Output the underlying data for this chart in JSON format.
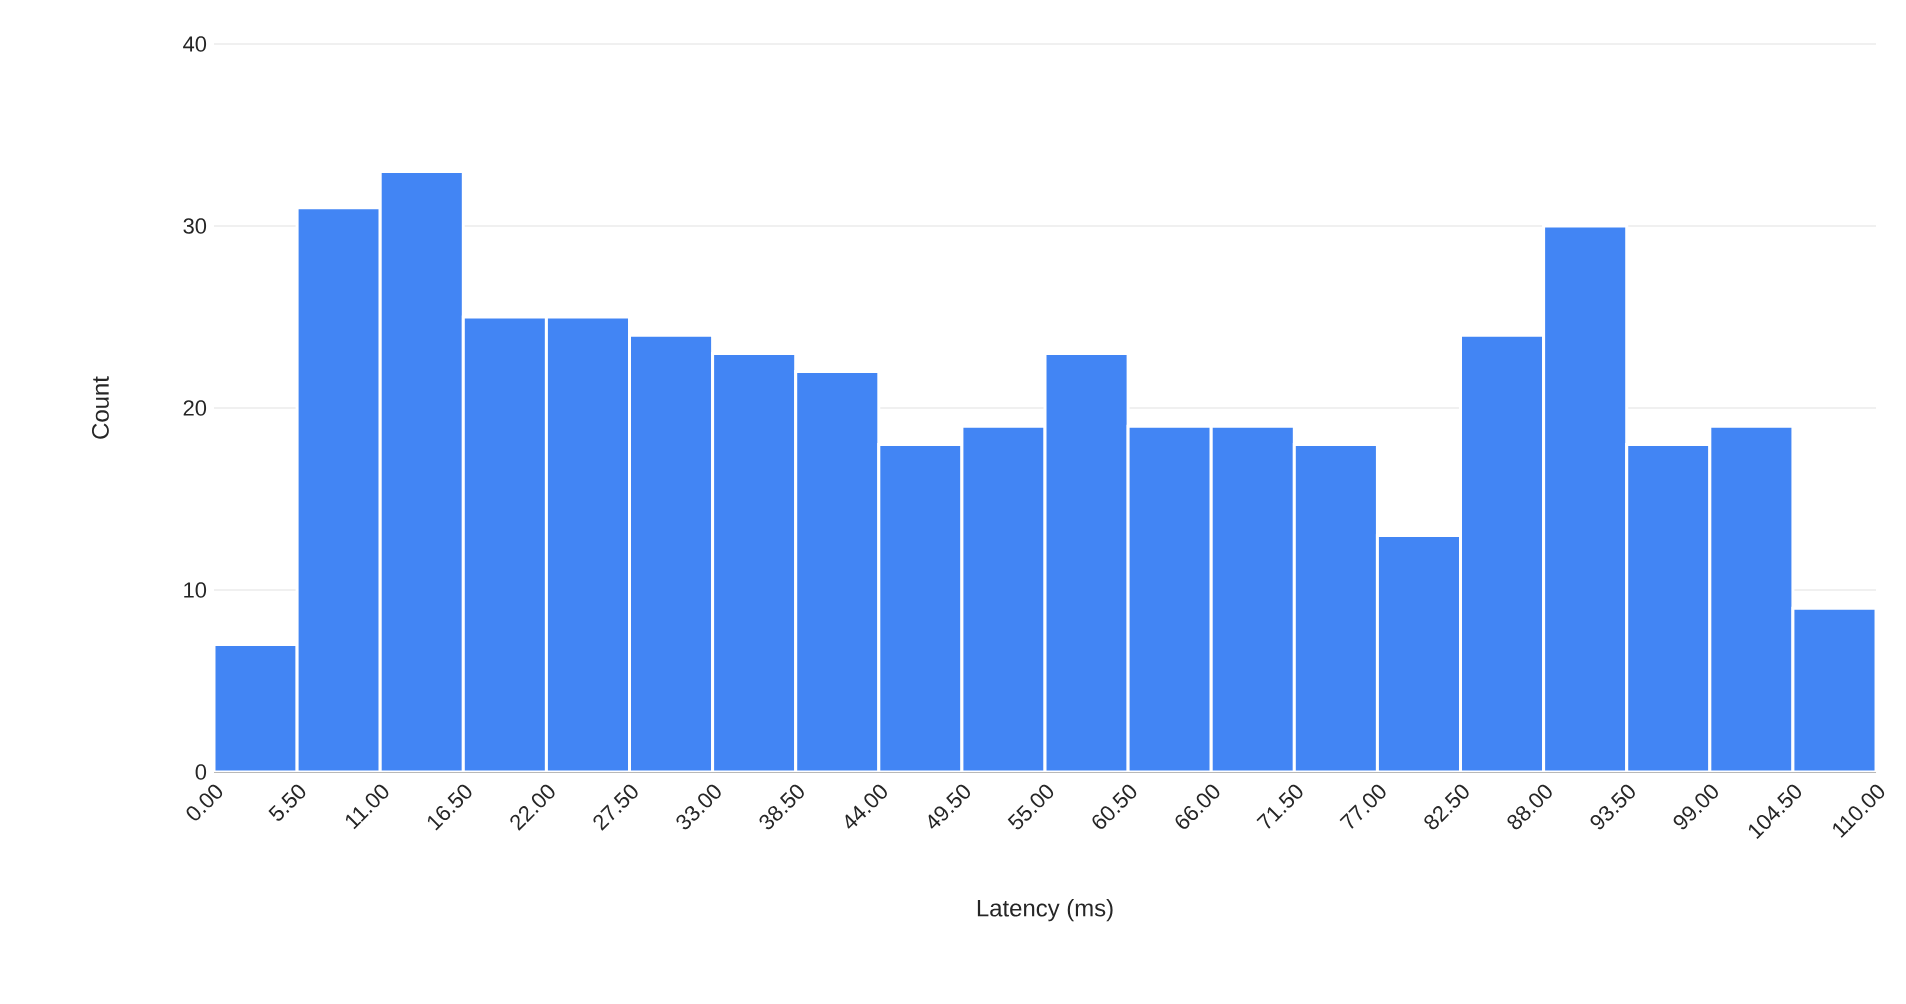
{
  "chart_data": {
    "type": "histogram",
    "xlabel": "Latency (ms)",
    "ylabel": "Count",
    "bins": [
      0,
      5.5,
      11,
      16.5,
      22,
      27.5,
      33,
      38.5,
      44,
      49.5,
      55,
      60.5,
      66,
      71.5,
      77,
      82.5,
      88,
      93.5,
      99,
      104.5,
      110
    ],
    "values": [
      7,
      31,
      33,
      25,
      25,
      24,
      23,
      22,
      18,
      19,
      23,
      19,
      19,
      18,
      13,
      24,
      30,
      18,
      19,
      9
    ],
    "color": "#4285f4",
    "xlim": [
      0,
      110
    ],
    "xticks": [
      {
        "value": 0,
        "label": "0.00"
      },
      {
        "value": 5.5,
        "label": "5.50"
      },
      {
        "value": 11,
        "label": "11.00"
      },
      {
        "value": 16.5,
        "label": "16.50"
      },
      {
        "value": 22,
        "label": "22.00"
      },
      {
        "value": 27.5,
        "label": "27.50"
      },
      {
        "value": 33,
        "label": "33.00"
      },
      {
        "value": 38.5,
        "label": "38.50"
      },
      {
        "value": 44,
        "label": "44.00"
      },
      {
        "value": 49.5,
        "label": "49.50"
      },
      {
        "value": 55,
        "label": "55.00"
      },
      {
        "value": 60.5,
        "label": "60.50"
      },
      {
        "value": 66,
        "label": "66.00"
      },
      {
        "value": 71.5,
        "label": "71.50"
      },
      {
        "value": 77,
        "label": "77.00"
      },
      {
        "value": 82.5,
        "label": "82.50"
      },
      {
        "value": 88,
        "label": "88.00"
      },
      {
        "value": 93.5,
        "label": "93.50"
      },
      {
        "value": 99,
        "label": "99.00"
      },
      {
        "value": 104.5,
        "label": "104.50"
      },
      {
        "value": 110,
        "label": "110.00"
      }
    ],
    "ylim": [
      0,
      40
    ],
    "yticks": [
      0,
      10,
      20,
      30,
      40
    ],
    "grid": "y"
  }
}
